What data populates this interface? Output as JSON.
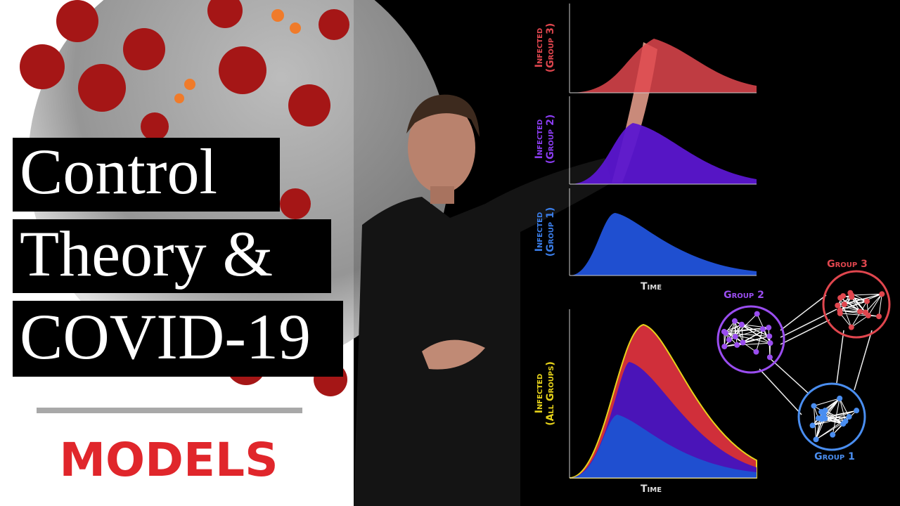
{
  "title": {
    "lines": [
      "Control",
      "Theory &",
      "COVID-19"
    ]
  },
  "subtitle": "MODELS",
  "plots": [
    {
      "label_lines": [
        "Infected",
        "(Group 3)"
      ]
    },
    {
      "label_lines": [
        "Infected",
        "(Group 2)"
      ]
    },
    {
      "label_lines": [
        "Infected",
        "(Group 1)"
      ]
    },
    {
      "label_lines": [
        "Infected",
        "(All Groups)"
      ]
    }
  ],
  "time_labels": [
    "Time",
    "Time"
  ],
  "network": {
    "groups": [
      "Group 3",
      "Group 2",
      "Group 1"
    ]
  }
}
